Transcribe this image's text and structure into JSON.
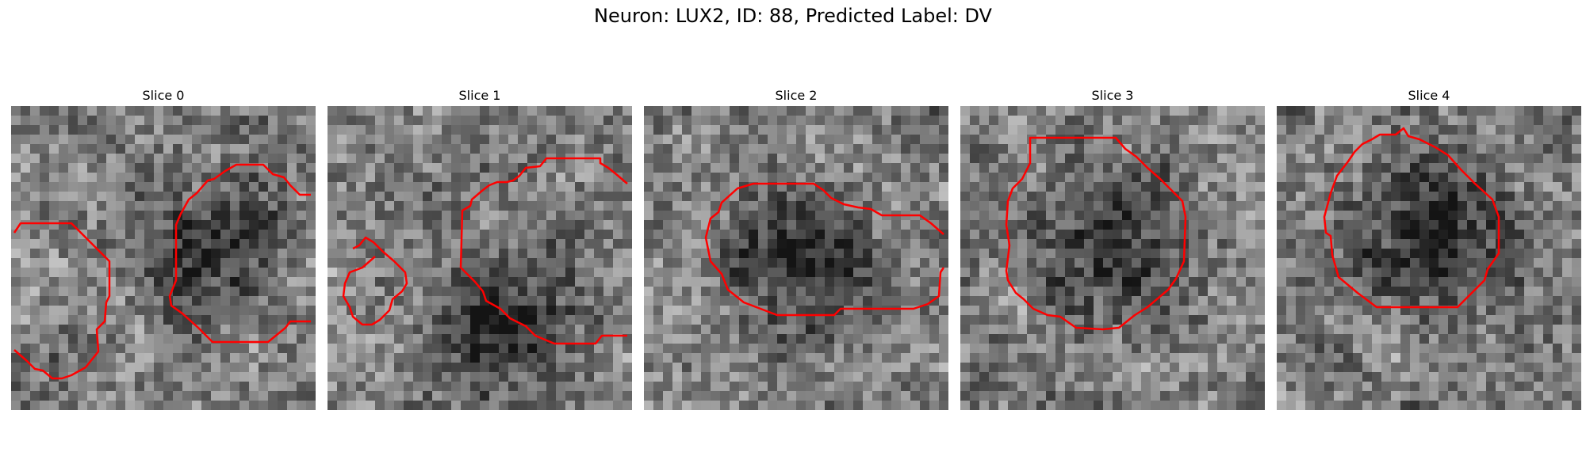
{
  "figure": {
    "title": "Neuron: LUX2, ID: 88, Predicted Label: DV"
  },
  "contour_color": "#ff0000",
  "slices": [
    {
      "title": "Slice 0",
      "seed": 11,
      "dark_center": [
        0.62,
        0.45
      ],
      "contours": 2
    },
    {
      "title": "Slice 1",
      "seed": 23,
      "dark_center": [
        0.55,
        0.7
      ],
      "contours": 2
    },
    {
      "title": "Slice 2",
      "seed": 37,
      "dark_center": [
        0.5,
        0.5
      ],
      "contours": 1
    },
    {
      "title": "Slice 3",
      "seed": 41,
      "dark_center": [
        0.5,
        0.47
      ],
      "contours": 1
    },
    {
      "title": "Slice 4",
      "seed": 59,
      "dark_center": [
        0.5,
        0.42
      ],
      "contours": 1
    }
  ]
}
